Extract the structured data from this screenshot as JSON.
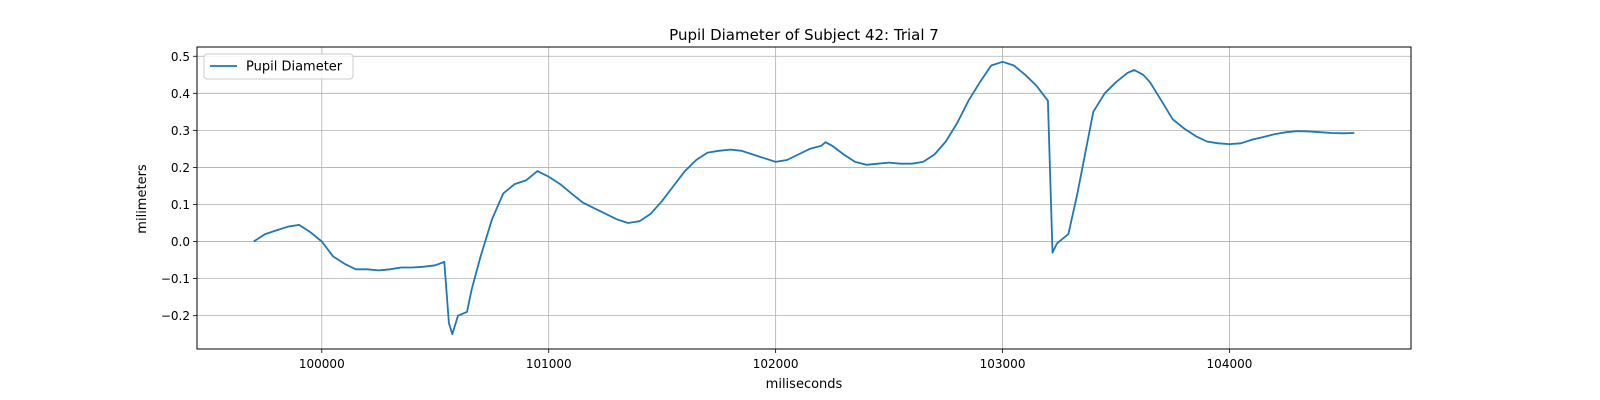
{
  "chart_data": {
    "type": "line",
    "title": "Pupil Diameter of Subject 42: Trial 7",
    "xlabel": "miliseconds",
    "ylabel": "milimeters",
    "xlim": [
      99450,
      104800
    ],
    "ylim": [
      -0.29,
      0.525
    ],
    "xticks": [
      100000,
      101000,
      102000,
      103000,
      104000
    ],
    "yticks": [
      -0.2,
      -0.1,
      0.0,
      0.1,
      0.2,
      0.3,
      0.4,
      0.5
    ],
    "xtick_labels": [
      "100000",
      "101000",
      "102000",
      "103000",
      "104000"
    ],
    "ytick_labels": [
      "−0.2",
      "−0.1",
      "0.0",
      "0.1",
      "0.2",
      "0.3",
      "0.4",
      "0.5"
    ],
    "grid": true,
    "legend_position": "top-left",
    "series": [
      {
        "name": "Pupil Diameter",
        "color": "#1f77b4",
        "x": [
          99700,
          99750,
          99800,
          99850,
          99900,
          99950,
          100000,
          100050,
          100100,
          100150,
          100200,
          100250,
          100300,
          100350,
          100400,
          100450,
          100500,
          100540,
          100560,
          100575,
          100600,
          100640,
          100660,
          100700,
          100750,
          100800,
          100850,
          100900,
          100950,
          101000,
          101050,
          101100,
          101150,
          101200,
          101250,
          101300,
          101350,
          101400,
          101450,
          101500,
          101550,
          101600,
          101650,
          101700,
          101750,
          101800,
          101850,
          101900,
          101950,
          102000,
          102050,
          102100,
          102150,
          102200,
          102220,
          102250,
          102300,
          102350,
          102400,
          102450,
          102500,
          102550,
          102600,
          102650,
          102700,
          102750,
          102800,
          102850,
          102900,
          102950,
          103000,
          103050,
          103100,
          103150,
          103200,
          103220,
          103240,
          103260,
          103290,
          103330,
          103400,
          103450,
          103500,
          103550,
          103580,
          103620,
          103650,
          103700,
          103750,
          103800,
          103850,
          103900,
          103950,
          104000,
          104050,
          104100,
          104150,
          104200,
          104250,
          104300,
          104350,
          104400,
          104450,
          104500,
          104550
        ],
        "y": [
          0.0,
          0.02,
          0.03,
          0.04,
          0.045,
          0.025,
          0.0,
          -0.04,
          -0.06,
          -0.075,
          -0.075,
          -0.078,
          -0.075,
          -0.07,
          -0.07,
          -0.068,
          -0.064,
          -0.055,
          -0.22,
          -0.25,
          -0.2,
          -0.19,
          -0.13,
          -0.04,
          0.06,
          0.13,
          0.155,
          0.165,
          0.19,
          0.175,
          0.155,
          0.13,
          0.105,
          0.09,
          0.075,
          0.06,
          0.05,
          0.055,
          0.075,
          0.11,
          0.15,
          0.19,
          0.22,
          0.24,
          0.245,
          0.248,
          0.245,
          0.235,
          0.225,
          0.215,
          0.22,
          0.235,
          0.25,
          0.258,
          0.268,
          0.258,
          0.235,
          0.215,
          0.207,
          0.21,
          0.213,
          0.21,
          0.21,
          0.215,
          0.235,
          0.27,
          0.32,
          0.38,
          0.43,
          0.475,
          0.485,
          0.475,
          0.45,
          0.42,
          0.38,
          -0.03,
          -0.005,
          0.005,
          0.02,
          0.13,
          0.35,
          0.4,
          0.43,
          0.455,
          0.463,
          0.45,
          0.43,
          0.38,
          0.33,
          0.305,
          0.285,
          0.27,
          0.265,
          0.263,
          0.265,
          0.275,
          0.282,
          0.29,
          0.295,
          0.298,
          0.297,
          0.295,
          0.293,
          0.292,
          0.293
        ]
      }
    ]
  }
}
